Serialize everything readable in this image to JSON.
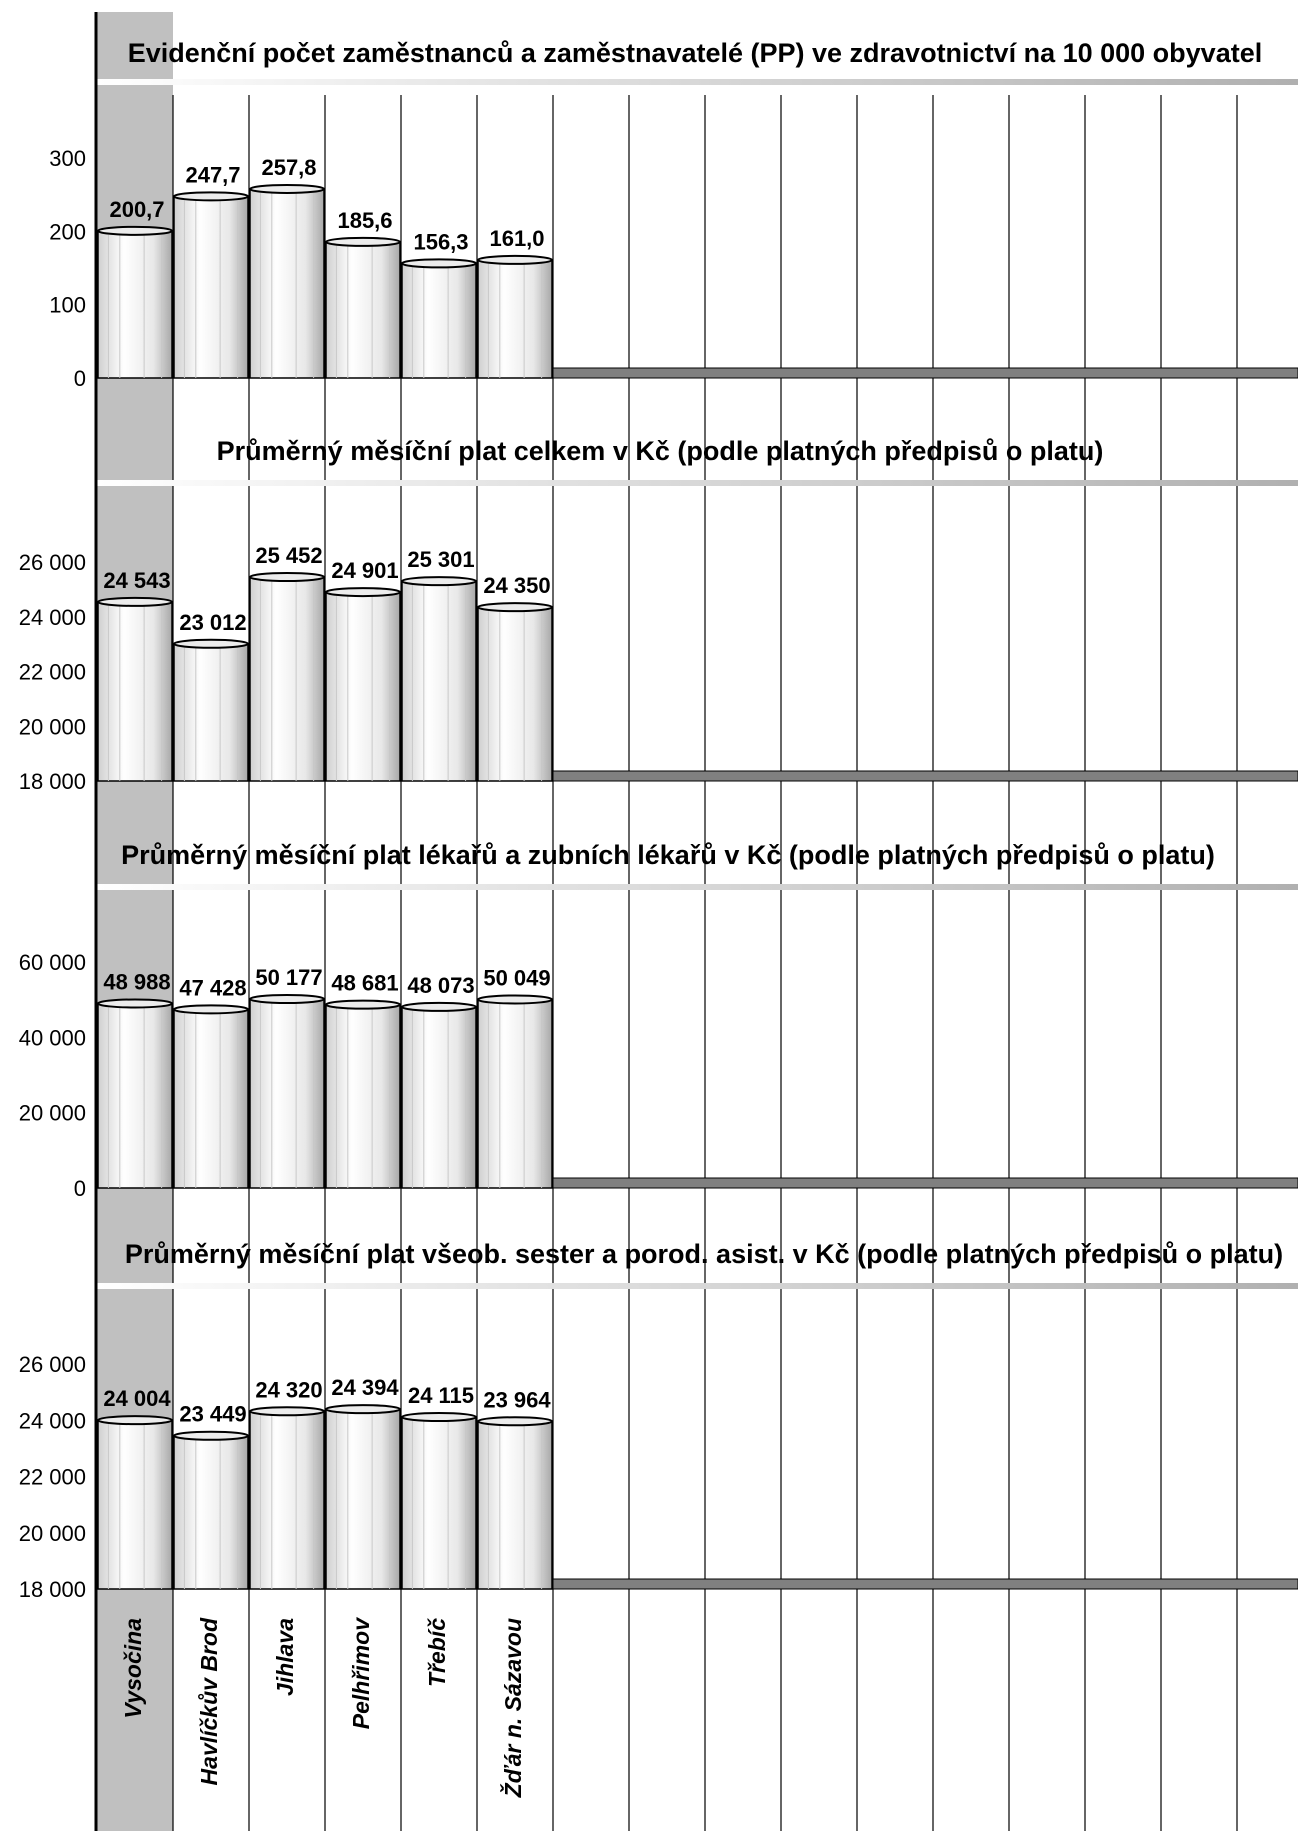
{
  "categories": [
    "Vysočina",
    "Havlíčkův Brod",
    "Jihlava",
    "Pelhřimov",
    "Třebíč",
    "Žďár n. Sázavou"
  ],
  "colors": {
    "highlight_band": "#c0c0c0",
    "floor": "#808080",
    "grid": "#000000"
  },
  "chart_data": [
    {
      "type": "bar",
      "title": "Evidenční počet zaměstnanců a zaměstnavatelé (PP) ve zdravotnictví na 10 000 obyvatel",
      "categories": [
        "Vysočina",
        "Havlíčkův Brod",
        "Jihlava",
        "Pelhřimov",
        "Třebíč",
        "Žďár n. Sázavou"
      ],
      "values": [
        200.7,
        247.7,
        257.8,
        185.6,
        156.3,
        161.0
      ],
      "value_labels": [
        "200,7",
        "247,7",
        "257,8",
        "185,6",
        "156,3",
        "161,0"
      ],
      "ylim": [
        0,
        300
      ],
      "yticks": [
        0,
        100,
        200,
        300
      ],
      "ytick_labels": [
        "0",
        "100",
        "200",
        "300"
      ]
    },
    {
      "type": "bar",
      "title": "Průměrný měsíční plat celkem v Kč (podle platných předpisů o platu)",
      "categories": [
        "Vysočina",
        "Havlíčkův Brod",
        "Jihlava",
        "Pelhřimov",
        "Třebíč",
        "Žďár n. Sázavou"
      ],
      "values": [
        24543,
        23012,
        25452,
        24901,
        25301,
        24350
      ],
      "value_labels": [
        "24 543",
        "23 012",
        "25 452",
        "24 901",
        "25 301",
        "24 350"
      ],
      "ylim": [
        18000,
        26000
      ],
      "yticks": [
        18000,
        20000,
        22000,
        24000,
        26000
      ],
      "ytick_labels": [
        "18 000",
        "20 000",
        "22 000",
        "24 000",
        "26 000"
      ]
    },
    {
      "type": "bar",
      "title": "Průměrný měsíční plat lékařů a zubních lékařů v Kč (podle platných předpisů o platu)",
      "categories": [
        "Vysočina",
        "Havlíčkův Brod",
        "Jihlava",
        "Pelhřimov",
        "Třebíč",
        "Žďár n. Sázavou"
      ],
      "values": [
        48988,
        47428,
        50177,
        48681,
        48073,
        50049
      ],
      "value_labels": [
        "48 988",
        "47 428",
        "50 177",
        "48 681",
        "48 073",
        "50 049"
      ],
      "ylim": [
        0,
        60000
      ],
      "yticks": [
        0,
        20000,
        40000,
        60000
      ],
      "ytick_labels": [
        "0",
        "20 000",
        "40 000",
        "60 000"
      ]
    },
    {
      "type": "bar",
      "title": "Průměrný měsíční plat všeob. sester a porod. asist. v Kč (podle platných předpisů o platu)",
      "categories": [
        "Vysočina",
        "Havlíčkův Brod",
        "Jihlava",
        "Pelhřimov",
        "Třebíč",
        "Žďár n. Sázavou"
      ],
      "values": [
        24004,
        23449,
        24320,
        24394,
        24115,
        23964
      ],
      "value_labels": [
        "24 004",
        "23 449",
        "24 320",
        "24 394",
        "24 115",
        "23 964"
      ],
      "ylim": [
        18000,
        26000
      ],
      "yticks": [
        18000,
        20000,
        22000,
        24000,
        26000
      ],
      "ytick_labels": [
        "18 000",
        "20 000",
        "22 000",
        "24 000",
        "26 000"
      ]
    }
  ]
}
